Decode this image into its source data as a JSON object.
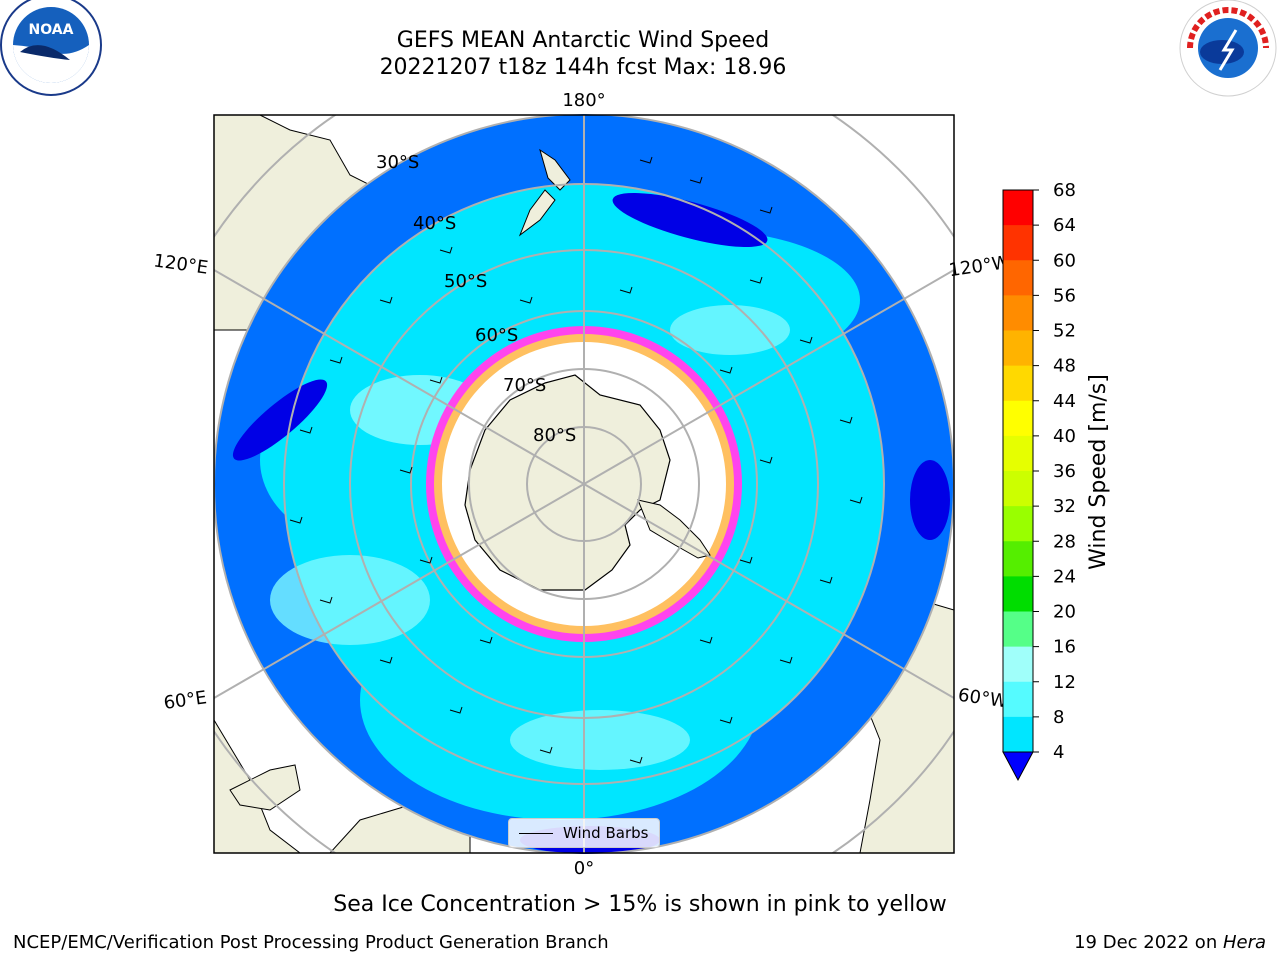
{
  "title": {
    "line1": "GEFS MEAN Antarctic Wind Speed",
    "line2": "20221207 t18z 144h fcst   Max: 18.96"
  },
  "map": {
    "projection": "south-polar-stereographic",
    "longitude_labels": [
      "180°",
      "120°E",
      "120°W",
      "60°E",
      "60°W",
      "0°"
    ],
    "latitude_labels": [
      "30°S",
      "40°S",
      "50°S",
      "60°S",
      "70°S",
      "80°S"
    ],
    "legend_label": "Wind Barbs",
    "colors": {
      "land": "#efefdc",
      "ice": "#ffffff",
      "ocean_low": "#0070ff",
      "ocean_mid": "#00e6ff",
      "ocean_high": "#7df9ff",
      "grid": "#b0b0b0"
    }
  },
  "colorbar": {
    "label": "Wind Speed [m/s]",
    "ticks": [
      "68",
      "64",
      "60",
      "56",
      "52",
      "48",
      "44",
      "40",
      "36",
      "32",
      "28",
      "24",
      "20",
      "16",
      "12",
      "8",
      "4"
    ],
    "colors": [
      "#ff0000",
      "#ff3300",
      "#ff6600",
      "#ff8c00",
      "#ffb300",
      "#ffd900",
      "#ffff00",
      "#e6ff00",
      "#ccff00",
      "#99ff00",
      "#55ee00",
      "#00dd00",
      "#55ff88",
      "#a0fffa",
      "#55fbff",
      "#00e6ff",
      "#0070ff"
    ],
    "under_color": "#0000ff"
  },
  "caption": "Sea Ice Concentration > 15% is shown in pink to yellow",
  "footer": {
    "left": "NCEP/EMC/Verification Post Processing Product Generation Branch",
    "date": "19 Dec 2022 on ",
    "host": "Hera"
  }
}
